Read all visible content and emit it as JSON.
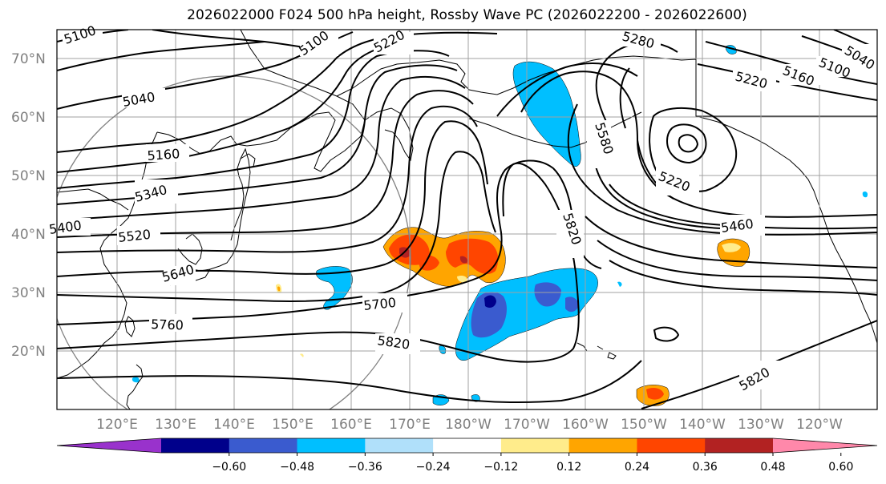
{
  "title": "2026022000 F024 500 hPa height, Rossby Wave PC (2026022200 - 2026022600)",
  "lat_labels": [
    "70°N",
    "60°N",
    "50°N",
    "40°N",
    "30°N",
    "20°N"
  ],
  "lon_labels": [
    "120°E",
    "130°E",
    "140°E",
    "150°E",
    "160°E",
    "170°E",
    "180°W",
    "170°W",
    "160°W",
    "150°W",
    "140°W",
    "130°W",
    "120°W"
  ],
  "contour_labels": [
    "5100",
    "5100",
    "5220",
    "5280",
    "5040",
    "5220",
    "5160",
    "5100",
    "5040",
    "5160",
    "5580",
    "5340",
    "5220",
    "5400",
    "5820",
    "5460",
    "5520",
    "5640",
    "5700",
    "5760",
    "5820",
    "5820"
  ],
  "colorbar": {
    "colors": [
      "#9932cc",
      "#00008b",
      "#3a5bcf",
      "#00bfff",
      "#b0e0fa",
      "#ffffff",
      "#ffec8b",
      "#ffa500",
      "#ff4500",
      "#b22222",
      "#ff88aa"
    ],
    "tick_labels": [
      "−0.60",
      "−0.48",
      "−0.36",
      "−0.24",
      "−0.12",
      "0.12",
      "0.24",
      "0.36",
      "0.48",
      "0.60"
    ]
  }
}
